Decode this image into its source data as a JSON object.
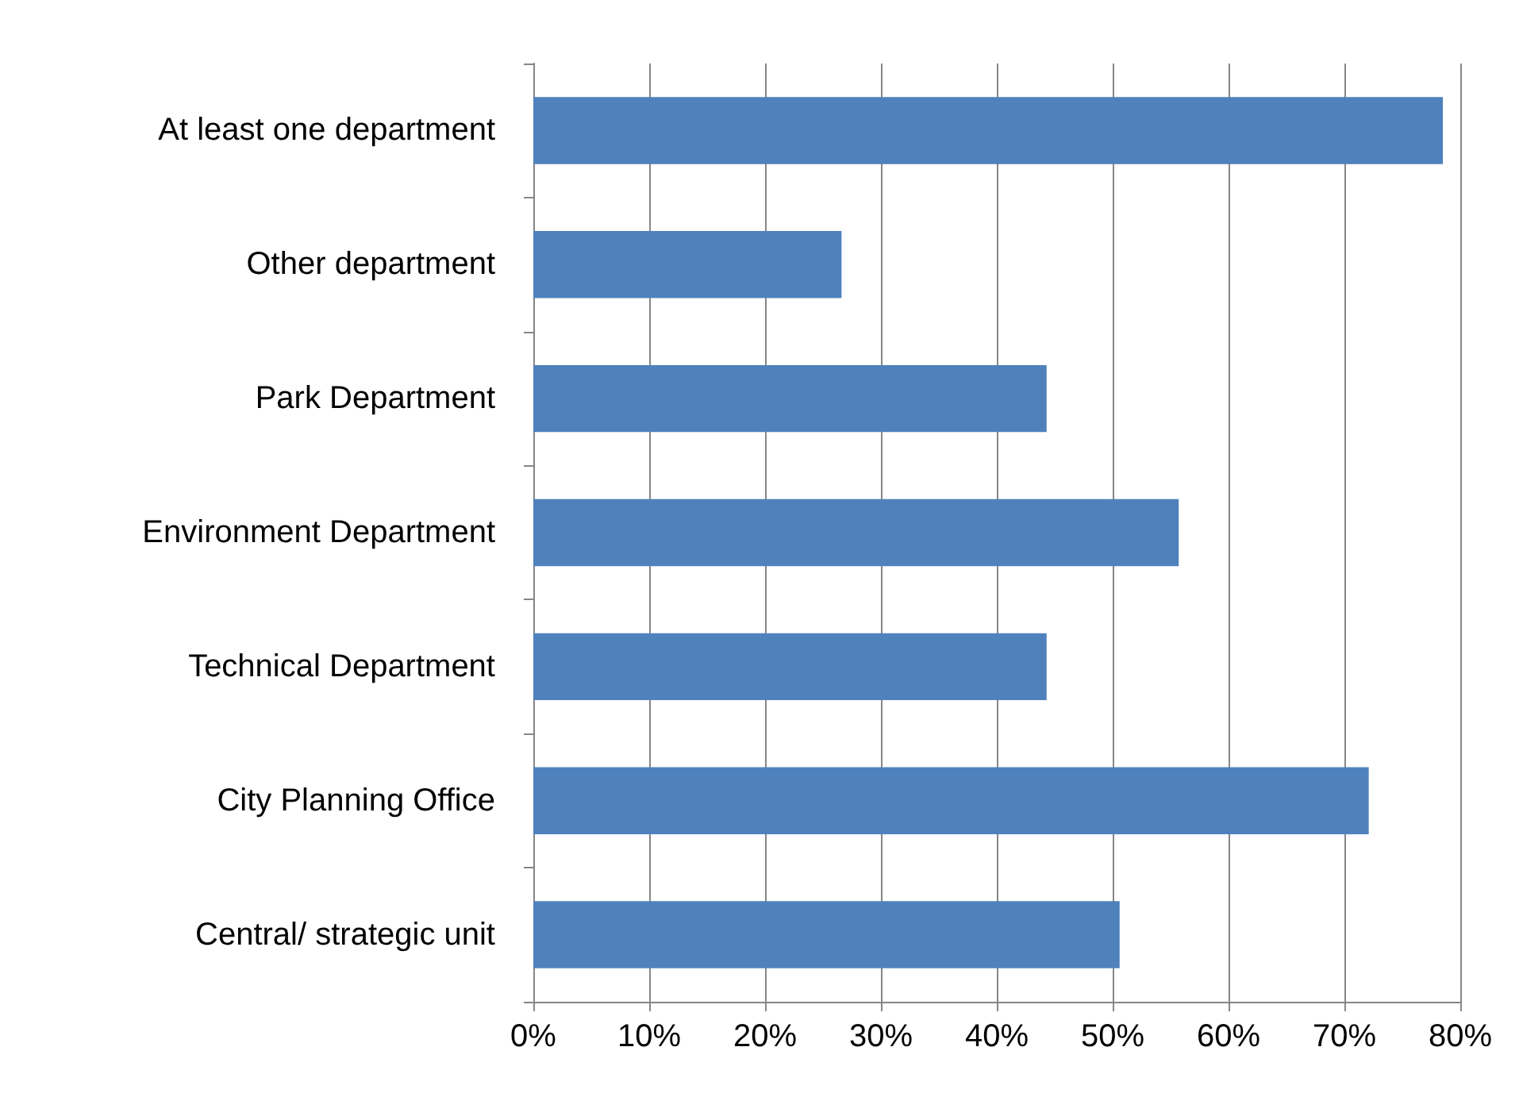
{
  "chart_data": {
    "type": "bar",
    "orientation": "horizontal",
    "categories": [
      "At least one department",
      "Other department",
      "Park Department",
      "Environment Department",
      "Technical Department",
      "City Planning Office",
      "Central/ strategic unit"
    ],
    "values": [
      78.5,
      26.6,
      44.3,
      55.7,
      44.3,
      72.1,
      50.6
    ],
    "color": "#4f81bd",
    "xlim": [
      0,
      80
    ],
    "xticks": [
      {
        "value": 0,
        "label": "0%"
      },
      {
        "value": 10,
        "label": "10%"
      },
      {
        "value": 20,
        "label": "20%"
      },
      {
        "value": 30,
        "label": "30%"
      },
      {
        "value": 40,
        "label": "40%"
      },
      {
        "value": 50,
        "label": "50%"
      },
      {
        "value": 60,
        "label": "60%"
      },
      {
        "value": 70,
        "label": "70%"
      },
      {
        "value": 80,
        "label": "80%"
      }
    ],
    "grid": "x"
  }
}
